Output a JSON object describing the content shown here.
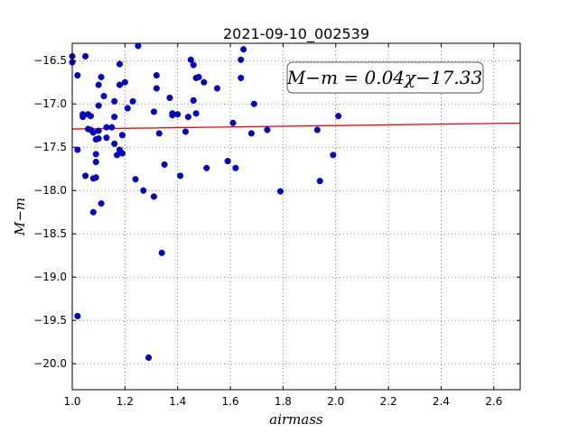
{
  "chart_data": {
    "type": "scatter",
    "title": "2021-09-10_002539",
    "xlabel": "airmass",
    "ylabel": "M−m",
    "xlim": [
      1.0,
      2.7
    ],
    "ylim": [
      -20.3,
      -16.3
    ],
    "xticks": [
      1.0,
      1.2,
      1.4,
      1.6,
      1.8,
      2.0,
      2.2,
      2.4,
      2.6
    ],
    "xtick_labels": [
      "1.0",
      "1.2",
      "1.4",
      "1.6",
      "1.8",
      "2.0",
      "2.2",
      "2.4",
      "2.6"
    ],
    "yticks": [
      -16.5,
      -17.0,
      -17.5,
      -18.0,
      -18.5,
      -19.0,
      -19.5,
      -20.0
    ],
    "ytick_labels": [
      "−16.5",
      "−17.0",
      "−17.5",
      "−18.0",
      "−18.5",
      "−19.0",
      "−19.5",
      "−20.0"
    ],
    "grid": true,
    "annotation": "M−m = 0.04χ−17.33",
    "fit_line": {
      "slope": 0.04,
      "intercept": -17.33,
      "color": "#ff0000"
    },
    "point_color": "#0000cc",
    "points": [
      [
        1.0,
        -16.45
      ],
      [
        1.0,
        -16.52
      ],
      [
        1.02,
        -16.67
      ],
      [
        1.02,
        -17.53
      ],
      [
        1.02,
        -19.45
      ],
      [
        1.04,
        -17.15
      ],
      [
        1.04,
        -17.12
      ],
      [
        1.05,
        -16.45
      ],
      [
        1.05,
        -17.83
      ],
      [
        1.06,
        -17.12
      ],
      [
        1.06,
        -17.29
      ],
      [
        1.07,
        -17.14
      ],
      [
        1.07,
        -17.3
      ],
      [
        1.08,
        -17.33
      ],
      [
        1.08,
        -17.86
      ],
      [
        1.08,
        -18.25
      ],
      [
        1.09,
        -17.85
      ],
      [
        1.09,
        -17.41
      ],
      [
        1.09,
        -17.58
      ],
      [
        1.09,
        -17.67
      ],
      [
        1.1,
        -16.78
      ],
      [
        1.1,
        -17.02
      ],
      [
        1.1,
        -17.4
      ],
      [
        1.1,
        -17.31
      ],
      [
        1.11,
        -16.69
      ],
      [
        1.11,
        -18.15
      ],
      [
        1.12,
        -16.91
      ],
      [
        1.13,
        -17.27
      ],
      [
        1.13,
        -17.39
      ],
      [
        1.15,
        -17.27
      ],
      [
        1.16,
        -17.15
      ],
      [
        1.16,
        -16.97
      ],
      [
        1.16,
        -17.46
      ],
      [
        1.17,
        -17.59
      ],
      [
        1.18,
        -16.78
      ],
      [
        1.18,
        -16.54
      ],
      [
        1.18,
        -17.53
      ],
      [
        1.19,
        -17.57
      ],
      [
        1.19,
        -17.36
      ],
      [
        1.2,
        -16.75
      ],
      [
        1.21,
        -17.05
      ],
      [
        1.23,
        -16.97
      ],
      [
        1.24,
        -17.87
      ],
      [
        1.25,
        -16.33
      ],
      [
        1.27,
        -18.0
      ],
      [
        1.29,
        -19.93
      ],
      [
        1.31,
        -17.09
      ],
      [
        1.31,
        -18.07
      ],
      [
        1.32,
        -16.67
      ],
      [
        1.32,
        -16.82
      ],
      [
        1.33,
        -17.34
      ],
      [
        1.34,
        -18.72
      ],
      [
        1.35,
        -17.7
      ],
      [
        1.37,
        -16.93
      ],
      [
        1.38,
        -17.13
      ],
      [
        1.38,
        -17.11
      ],
      [
        1.4,
        -17.12
      ],
      [
        1.41,
        -17.83
      ],
      [
        1.43,
        -17.32
      ],
      [
        1.44,
        -17.15
      ],
      [
        1.45,
        -16.49
      ],
      [
        1.46,
        -16.55
      ],
      [
        1.46,
        -16.96
      ],
      [
        1.47,
        -16.7
      ],
      [
        1.47,
        -17.11
      ],
      [
        1.48,
        -16.69
      ],
      [
        1.5,
        -16.75
      ],
      [
        1.51,
        -17.74
      ],
      [
        1.55,
        -16.82
      ],
      [
        1.59,
        -17.66
      ],
      [
        1.61,
        -17.22
      ],
      [
        1.62,
        -17.74
      ],
      [
        1.64,
        -16.49
      ],
      [
        1.64,
        -16.7
      ],
      [
        1.65,
        -16.37
      ],
      [
        1.68,
        -17.34
      ],
      [
        1.69,
        -17.0
      ],
      [
        1.74,
        -17.3
      ],
      [
        1.79,
        -18.01
      ],
      [
        1.93,
        -17.3
      ],
      [
        1.94,
        -17.89
      ],
      [
        1.99,
        -17.59
      ],
      [
        2.01,
        -17.14
      ]
    ]
  }
}
